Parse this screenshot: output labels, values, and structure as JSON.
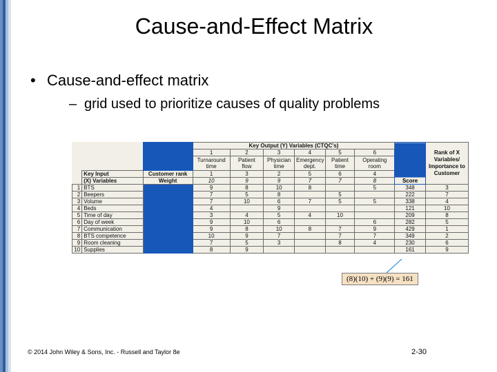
{
  "slide": {
    "title": "Cause-and-Effect Matrix",
    "bullet": "Cause-and-effect matrix",
    "sub_bullet": "grid used to prioritize causes of quality problems",
    "footer_left": "© 2014 John Wiley & Sons, Inc. - Russell and Taylor 8e",
    "footer_right": "2-30"
  },
  "matrix": {
    "output_header": "Key Output (Y) Variables (CTQC's)",
    "rank_header": "Rank of X Variables/ Importance to Customer",
    "key_input_label": "Key Input",
    "x_variables_label": "(X) Variables",
    "customer_rank_label": "Customer rank",
    "weight_label": "Weight",
    "score_label": "Score",
    "outputs": [
      {
        "num": "1",
        "name1": "Turnaround",
        "name2": "time",
        "rank": "1",
        "weight": "10"
      },
      {
        "num": "2",
        "name1": "Patient",
        "name2": "flow",
        "rank": "3",
        "weight": "9"
      },
      {
        "num": "3",
        "name1": "Physician",
        "name2": "time",
        "rank": "2",
        "weight": "9"
      },
      {
        "num": "4",
        "name1": "Emergency",
        "name2": "dept.",
        "rank": "5",
        "weight": "7"
      },
      {
        "num": "5",
        "name1": "Patient",
        "name2": "time",
        "rank": "6",
        "weight": "7"
      },
      {
        "num": "6",
        "name1": "Operating",
        "name2": "room",
        "rank": "4",
        "weight": "8"
      }
    ],
    "rows": [
      {
        "num": "1",
        "name": "BTS",
        "c": [
          "9",
          "8",
          "10",
          "8",
          "",
          "5"
        ],
        "score": "348",
        "rank": "3"
      },
      {
        "num": "2",
        "name": "Beepers",
        "c": [
          "7",
          "5",
          "8",
          "",
          "5",
          ""
        ],
        "score": "222",
        "rank": "7"
      },
      {
        "num": "3",
        "name": "Volume",
        "c": [
          "7",
          "10",
          "6",
          "7",
          "5",
          "5"
        ],
        "score": "338",
        "rank": "4"
      },
      {
        "num": "4",
        "name": "Beds",
        "c": [
          "4",
          "",
          "9",
          "",
          "",
          ""
        ],
        "score": "121",
        "rank": "10"
      },
      {
        "num": "5",
        "name": "Time of day",
        "c": [
          "3",
          "4",
          "5",
          "4",
          "10",
          ""
        ],
        "score": "209",
        "rank": "8"
      },
      {
        "num": "6",
        "name": "Day of week",
        "c": [
          "9",
          "10",
          "6",
          "",
          "",
          "6"
        ],
        "score": "282",
        "rank": "5"
      },
      {
        "num": "7",
        "name": "Communication",
        "c": [
          "9",
          "8",
          "10",
          "8",
          "7",
          "9"
        ],
        "score": "429",
        "rank": "1"
      },
      {
        "num": "8",
        "name": "BTS competence",
        "c": [
          "10",
          "9",
          "7",
          "",
          "7",
          "7"
        ],
        "score": "349",
        "rank": "2"
      },
      {
        "num": "9",
        "name": "Room cleaning",
        "c": [
          "7",
          "5",
          "3",
          "",
          "8",
          "4"
        ],
        "score": "230",
        "rank": "6"
      },
      {
        "num": "10",
        "name": "Supplies",
        "c": [
          "8",
          "9",
          "",
          "",
          "",
          ""
        ],
        "score": "161",
        "rank": "9"
      }
    ],
    "formula": "(8)(10) + (9)(9) = 161"
  },
  "colors": {
    "matrix_blue": "#1757b8",
    "table_bg": "#f1efe6",
    "formula_bg": "#f6e1c4",
    "pointer_line": "#3a8fd6"
  }
}
